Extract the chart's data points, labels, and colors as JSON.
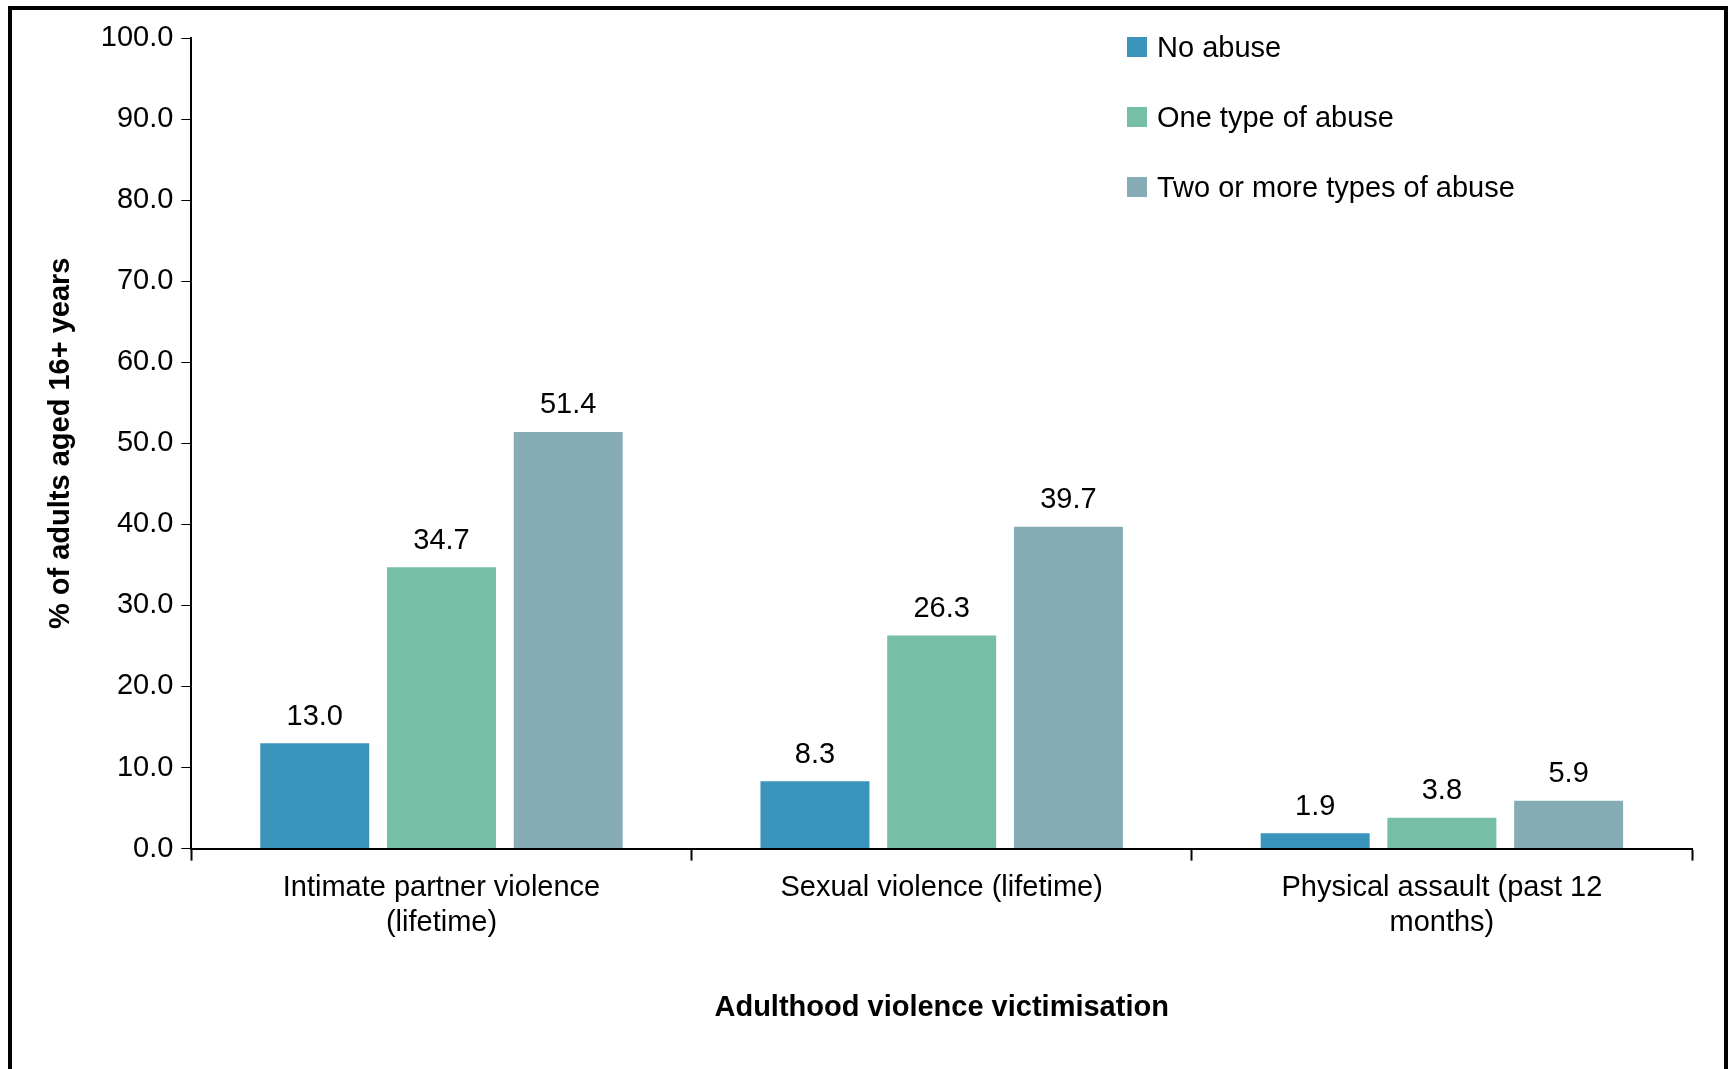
{
  "chart_data": {
    "type": "bar",
    "xlabel": "Adulthood violence victimisation",
    "ylabel": "% of adults aged 16+ years",
    "categories": [
      "Intimate partner violence (lifetime)",
      "Sexual violence (lifetime)",
      "Physical assault (past 12 months)"
    ],
    "series": [
      {
        "name": "No abuse",
        "color": "#3a94bb",
        "values": [
          13.0,
          8.3,
          1.9
        ],
        "value_labels": [
          "13.0",
          "8.3",
          "1.9"
        ]
      },
      {
        "name": "One type of abuse",
        "color": "#76bea5",
        "values": [
          34.7,
          26.3,
          3.8
        ],
        "value_labels": [
          "34.7",
          "26.3",
          "3.8"
        ]
      },
      {
        "name": "Two or more types of abuse",
        "color": "#86adb6",
        "values": [
          51.4,
          39.7,
          5.9
        ],
        "value_labels": [
          "51.4",
          "39.7",
          "5.9"
        ]
      }
    ],
    "ylim": [
      0,
      100
    ],
    "yticks": [
      {
        "value": 0,
        "label": "0.0"
      },
      {
        "value": 10,
        "label": "10.0"
      },
      {
        "value": 20,
        "label": "20.0"
      },
      {
        "value": 30,
        "label": "30.0"
      },
      {
        "value": 40,
        "label": "40.0"
      },
      {
        "value": 50,
        "label": "50.0"
      },
      {
        "value": 60,
        "label": "60.0"
      },
      {
        "value": 70,
        "label": "70.0"
      },
      {
        "value": 80,
        "label": "80.0"
      },
      {
        "value": 90,
        "label": "90.0"
      },
      {
        "value": 100,
        "label": "100.0"
      }
    ],
    "grid": false,
    "legend": "top right"
  }
}
